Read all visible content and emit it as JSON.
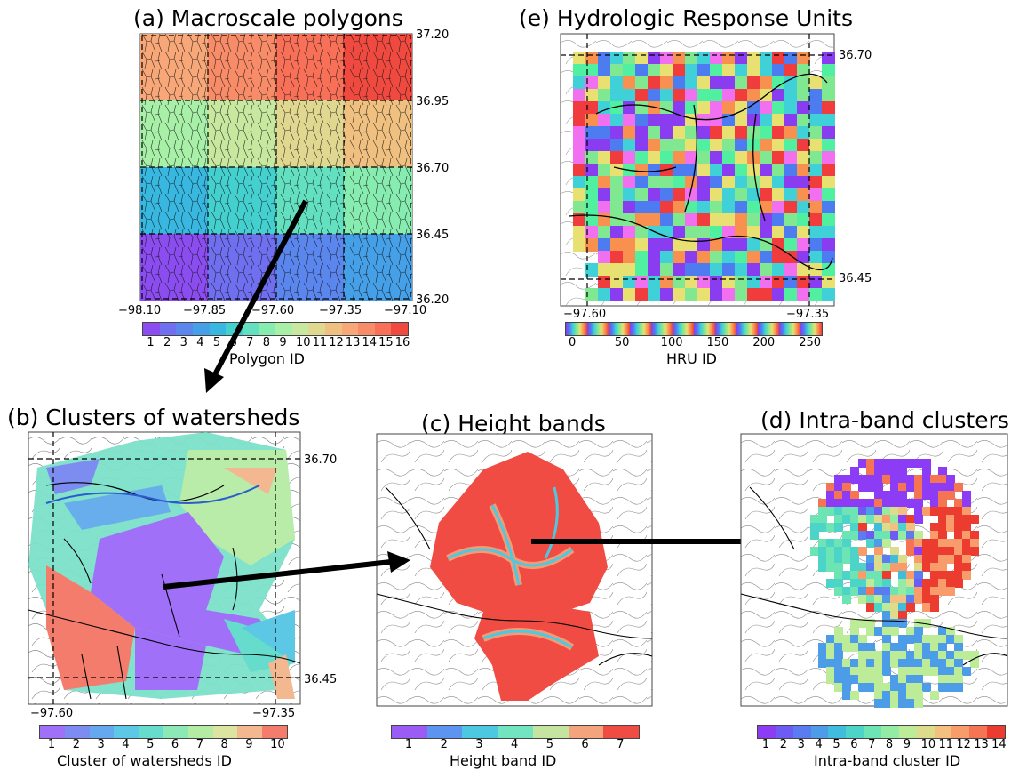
{
  "panel_a": {
    "title": "(a) Macroscale polygons",
    "x_ticks": [
      "−98.10",
      "−97.85",
      "−97.60",
      "−97.35",
      "−97.10"
    ],
    "y_ticks": [
      "37.20",
      "36.95",
      "36.70",
      "36.45",
      "36.20"
    ],
    "colorbar_ticks": [
      "1",
      "2",
      "3",
      "4",
      "5",
      "6",
      "7",
      "8",
      "9",
      "10",
      "11",
      "12",
      "13",
      "14",
      "15",
      "16"
    ],
    "colorbar_label": "Polygon ID",
    "colors": [
      "#8b4cf0",
      "#6f6ff0",
      "#5a86ee",
      "#45a0e8",
      "#38b8e0",
      "#45d0d0",
      "#62e0c0",
      "#86ecb0",
      "#a8f0a8",
      "#c8e8a0",
      "#e0d890",
      "#f0c080",
      "#f8a878",
      "#f88c68",
      "#f87058",
      "#f04a40"
    ]
  },
  "panel_e": {
    "title": "(e) Hydrologic Response Units",
    "x_ticks": [
      "−97.60",
      "−97.35"
    ],
    "y_ticks": [
      "36.70",
      "36.45"
    ],
    "colorbar_ticks": [
      "0",
      "50",
      "100",
      "150",
      "200",
      "250"
    ],
    "colorbar_label": "HRU ID"
  },
  "panel_b": {
    "title": "(b) Clusters of watersheds",
    "x_ticks": [
      "−97.60",
      "−97.35"
    ],
    "y_ticks": [
      "36.70",
      "36.45"
    ],
    "colorbar_ticks": [
      "1",
      "2",
      "3",
      "4",
      "5",
      "6",
      "7",
      "8",
      "9",
      "10"
    ],
    "colorbar_label": "Cluster of watersheds ID",
    "colors": [
      "#a070f8",
      "#7c8cf0",
      "#66a8f0",
      "#5cc8e6",
      "#66dccc",
      "#8ce8b4",
      "#b4eca4",
      "#dce4a0",
      "#f4b890",
      "#f47c6c"
    ]
  },
  "panel_c": {
    "title": "(c) Height bands",
    "colorbar_ticks": [
      "1",
      "2",
      "3",
      "4",
      "5",
      "6",
      "7"
    ],
    "colorbar_label": "Height band ID",
    "colors": [
      "#9a5cf4",
      "#5c94f0",
      "#4cc8e0",
      "#72e4c0",
      "#c4e4a0",
      "#f4a47c",
      "#f04c44"
    ]
  },
  "panel_d": {
    "title": "(d) Intra-band clusters",
    "colorbar_ticks": [
      "1",
      "2",
      "3",
      "4",
      "5",
      "6",
      "7",
      "8",
      "9",
      "10",
      "11",
      "12",
      "13",
      "14"
    ],
    "colorbar_label": "Intra-band cluster ID",
    "colors": [
      "#8b3cf4",
      "#6c5cf4",
      "#5a7cf0",
      "#4c9ce8",
      "#40bcdc",
      "#4cd4c8",
      "#6ce4b4",
      "#94eca4",
      "#bcec98",
      "#dcdc8c",
      "#f4c080",
      "#f89c6c",
      "#f47454",
      "#ec3c30"
    ]
  }
}
